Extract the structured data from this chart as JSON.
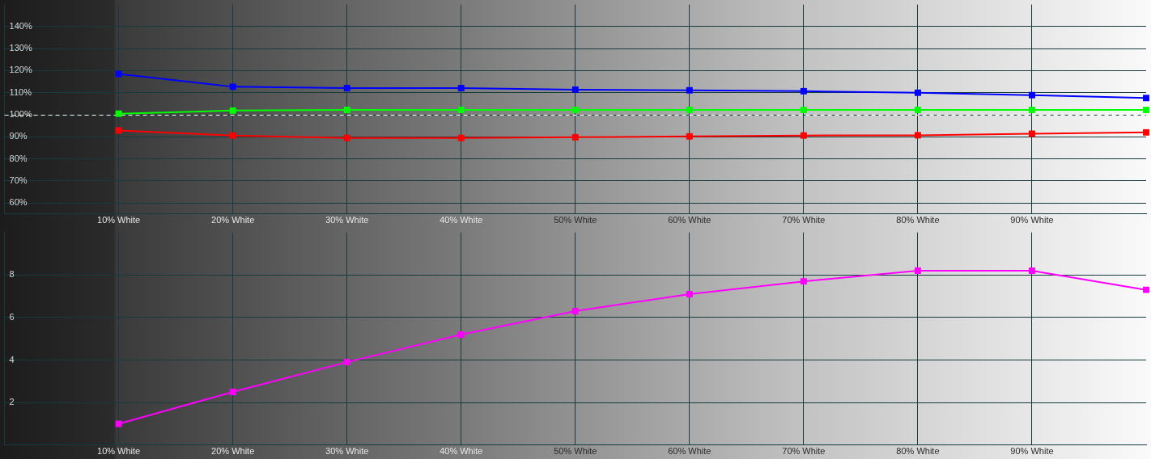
{
  "chart_data": [
    {
      "type": "line",
      "x": [
        10,
        20,
        30,
        40,
        50,
        60,
        70,
        80,
        90,
        100
      ],
      "series": [
        {
          "color": "#0000ff",
          "values": [
            118.5,
            112.7,
            112.1,
            112.1,
            111.4,
            111.1,
            110.7,
            110.0,
            108.9,
            107.6
          ]
        },
        {
          "color": "#00ff00",
          "values": [
            100.5,
            101.9,
            102.2,
            102.2,
            102.2,
            102.2,
            102.2,
            102.2,
            102.2,
            102.2
          ]
        },
        {
          "color": "#ff0000",
          "values": [
            92.9,
            90.6,
            89.5,
            89.5,
            89.8,
            90.2,
            90.6,
            90.7,
            91.4,
            92.0
          ]
        }
      ],
      "xlim": [
        0,
        100
      ],
      "xticks": [
        {
          "value": 10,
          "label": "10% White"
        },
        {
          "value": 20,
          "label": "20% White"
        },
        {
          "value": 30,
          "label": "30% White"
        },
        {
          "value": 40,
          "label": "40% White"
        },
        {
          "value": 50,
          "label": "50% White"
        },
        {
          "value": 60,
          "label": "60% White"
        },
        {
          "value": 70,
          "label": "70% White"
        },
        {
          "value": 80,
          "label": "80% White"
        },
        {
          "value": 90,
          "label": "90% White"
        }
      ],
      "ylim": [
        55,
        150
      ],
      "yticks": [
        {
          "value": 60,
          "label": "60%"
        },
        {
          "value": 70,
          "label": "70%"
        },
        {
          "value": 80,
          "label": "80%"
        },
        {
          "value": 90,
          "label": "90%"
        },
        {
          "value": 100,
          "label": "100%"
        },
        {
          "value": 110,
          "label": "110%"
        },
        {
          "value": 120,
          "label": "120%"
        },
        {
          "value": 130,
          "label": "130%"
        },
        {
          "value": 140,
          "label": "140%"
        }
      ],
      "grid": true,
      "marker": "square",
      "line_style": "solid",
      "ref_lines": [
        {
          "axis": "y",
          "value": 100,
          "color": "#ffffff",
          "line_style": "dashed"
        }
      ]
    },
    {
      "type": "line",
      "x": [
        10,
        20,
        30,
        40,
        50,
        60,
        70,
        80,
        90,
        100
      ],
      "series": [
        {
          "color": "#ff00ff",
          "values": [
            1.0,
            2.5,
            3.9,
            5.2,
            6.3,
            7.1,
            7.7,
            8.2,
            8.2,
            7.3
          ]
        }
      ],
      "xlim": [
        0,
        100
      ],
      "xticks": [
        {
          "value": 10,
          "label": "10% White"
        },
        {
          "value": 20,
          "label": "20% White"
        },
        {
          "value": 30,
          "label": "30% White"
        },
        {
          "value": 40,
          "label": "40% White"
        },
        {
          "value": 50,
          "label": "50% White"
        },
        {
          "value": 60,
          "label": "60% White"
        },
        {
          "value": 70,
          "label": "70% White"
        },
        {
          "value": 80,
          "label": "80% White"
        },
        {
          "value": 90,
          "label": "90% White"
        }
      ],
      "ylim": [
        0,
        10
      ],
      "yticks": [
        2,
        4,
        6,
        8
      ],
      "grid": true,
      "marker": "square",
      "line_style": "solid"
    }
  ]
}
